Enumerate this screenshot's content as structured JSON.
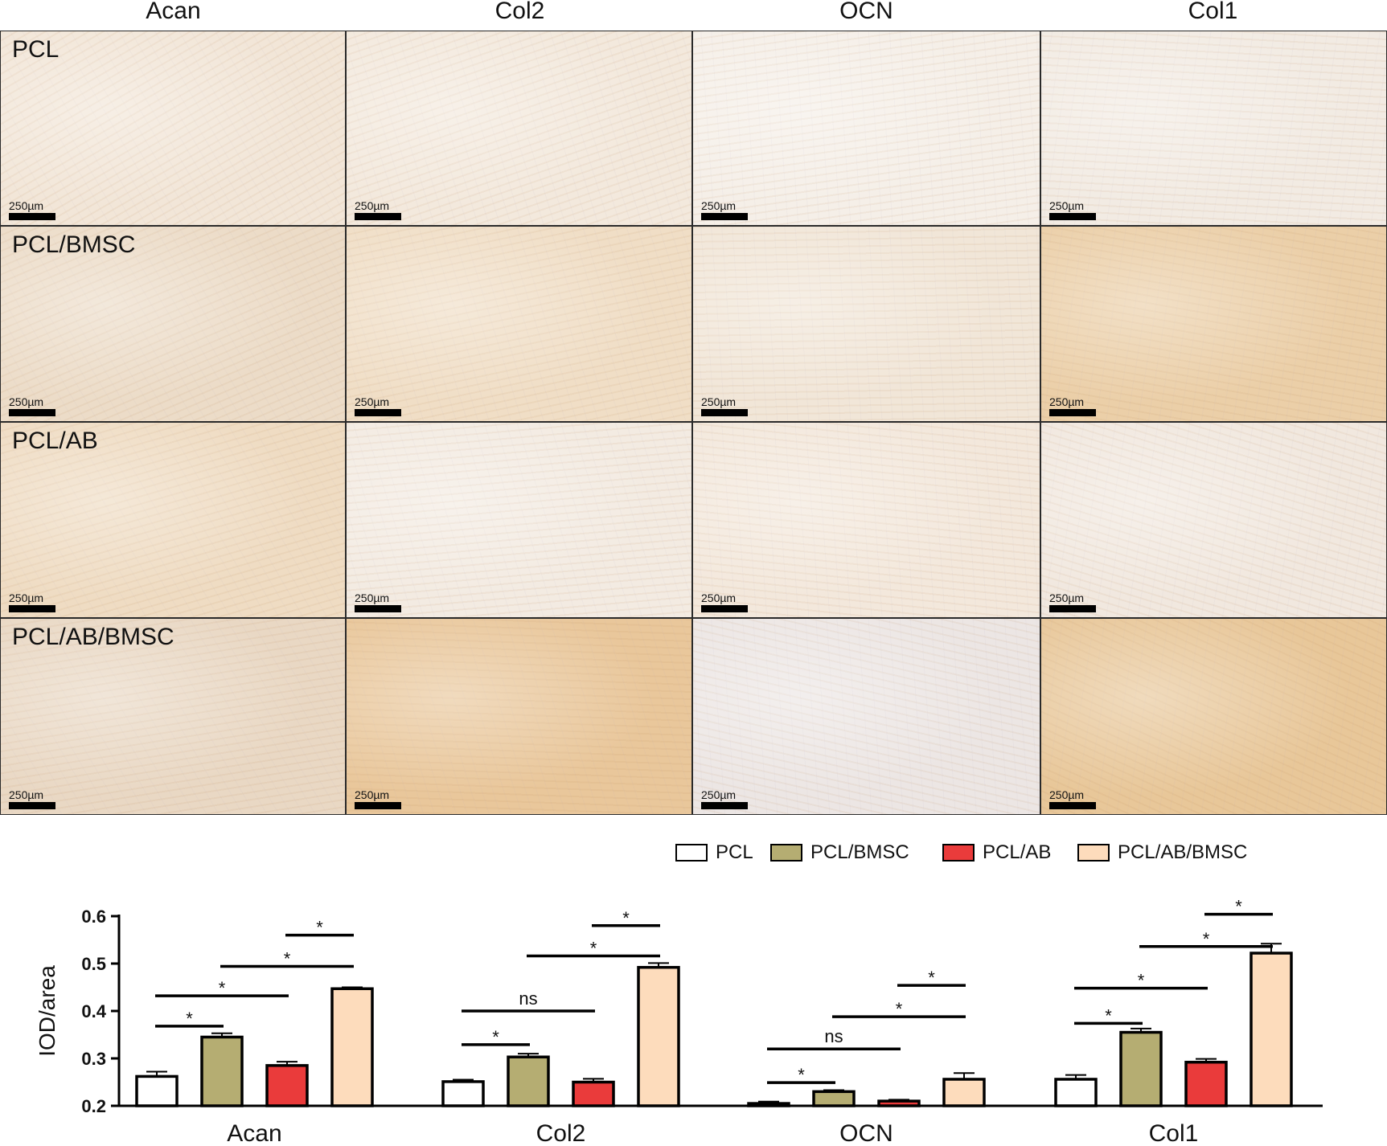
{
  "columns": [
    "Acan",
    "Col2",
    "OCN",
    "Col1"
  ],
  "rows": [
    "PCL",
    "PCL/BMSC",
    "PCL/AB",
    "PCL/AB/BMSC"
  ],
  "scale_bar_label": "250µm",
  "panel_tints": [
    [
      "#f2e6d8",
      "#f3e9dd",
      "#f5efe8",
      "#f2ebe3"
    ],
    [
      "#ecdcc8",
      "#f0dec6",
      "#f1e6d8",
      "#ebcfa8"
    ],
    [
      "#efdcc3",
      "#f3ebe2",
      "#f3e8dc",
      "#f1e8df"
    ],
    [
      "#e9d8c4",
      "#e9c79b",
      "#ece6e4",
      "#e8c799"
    ]
  ],
  "legend": [
    {
      "label": "PCL",
      "color": "#ffffff"
    },
    {
      "label": "PCL/BMSC",
      "color": "#b5ad72"
    },
    {
      "label": "PCL/AB",
      "color": "#ea3b3b"
    },
    {
      "label": "PCL/AB/BMSC",
      "color": "#fddcbc"
    }
  ],
  "chart_data": {
    "type": "bar",
    "categories": [
      "Acan",
      "Col2",
      "OCN",
      "Col1"
    ],
    "ylabel": "IOD/area",
    "xlabel": "",
    "ylim": [
      0.2,
      0.6
    ],
    "yticks": [
      "0.2",
      "0.3",
      "0.4",
      "0.5",
      "0.6"
    ],
    "series": [
      {
        "name": "PCL",
        "color": "#ffffff",
        "values": [
          0.262,
          0.251,
          0.205,
          0.256
        ],
        "errors": [
          0.01,
          0.004,
          0.004,
          0.009
        ]
      },
      {
        "name": "PCL/BMSC",
        "color": "#b5ad72",
        "values": [
          0.345,
          0.303,
          0.23,
          0.355
        ],
        "errors": [
          0.008,
          0.007,
          0.003,
          0.008
        ]
      },
      {
        "name": "PCL/AB",
        "color": "#ea3b3b",
        "values": [
          0.285,
          0.25,
          0.21,
          0.292
        ],
        "errors": [
          0.008,
          0.007,
          0.003,
          0.007
        ]
      },
      {
        "name": "PCL/AB/BMSC",
        "color": "#fddcbc",
        "values": [
          0.447,
          0.492,
          0.256,
          0.522
        ],
        "errors": [
          0.003,
          0.009,
          0.013,
          0.02
        ]
      }
    ],
    "significance": [
      {
        "category": 0,
        "from": 0,
        "to": 1,
        "label": "*",
        "y": 0.368
      },
      {
        "category": 0,
        "from": 0,
        "to": 2,
        "label": "*",
        "y": 0.432
      },
      {
        "category": 0,
        "from": 1,
        "to": 3,
        "label": "*",
        "y": 0.494
      },
      {
        "category": 0,
        "from": 2,
        "to": 3,
        "label": "*",
        "y": 0.56
      },
      {
        "category": 1,
        "from": 0,
        "to": 1,
        "label": "*",
        "y": 0.329
      },
      {
        "category": 1,
        "from": 0,
        "to": 2,
        "label": "ns",
        "y": 0.4
      },
      {
        "category": 1,
        "from": 1,
        "to": 3,
        "label": "*",
        "y": 0.516
      },
      {
        "category": 1,
        "from": 2,
        "to": 3,
        "label": "*",
        "y": 0.58
      },
      {
        "category": 2,
        "from": 0,
        "to": 1,
        "label": "*",
        "y": 0.249
      },
      {
        "category": 2,
        "from": 0,
        "to": 2,
        "label": "ns",
        "y": 0.32
      },
      {
        "category": 2,
        "from": 1,
        "to": 3,
        "label": "*",
        "y": 0.388
      },
      {
        "category": 2,
        "from": 2,
        "to": 3,
        "label": "*",
        "y": 0.454
      },
      {
        "category": 3,
        "from": 0,
        "to": 1,
        "label": "*",
        "y": 0.374
      },
      {
        "category": 3,
        "from": 0,
        "to": 2,
        "label": "*",
        "y": 0.448
      },
      {
        "category": 3,
        "from": 1,
        "to": 3,
        "label": "*",
        "y": 0.536
      },
      {
        "category": 3,
        "from": 2,
        "to": 3,
        "label": "*",
        "y": 0.604
      }
    ]
  }
}
